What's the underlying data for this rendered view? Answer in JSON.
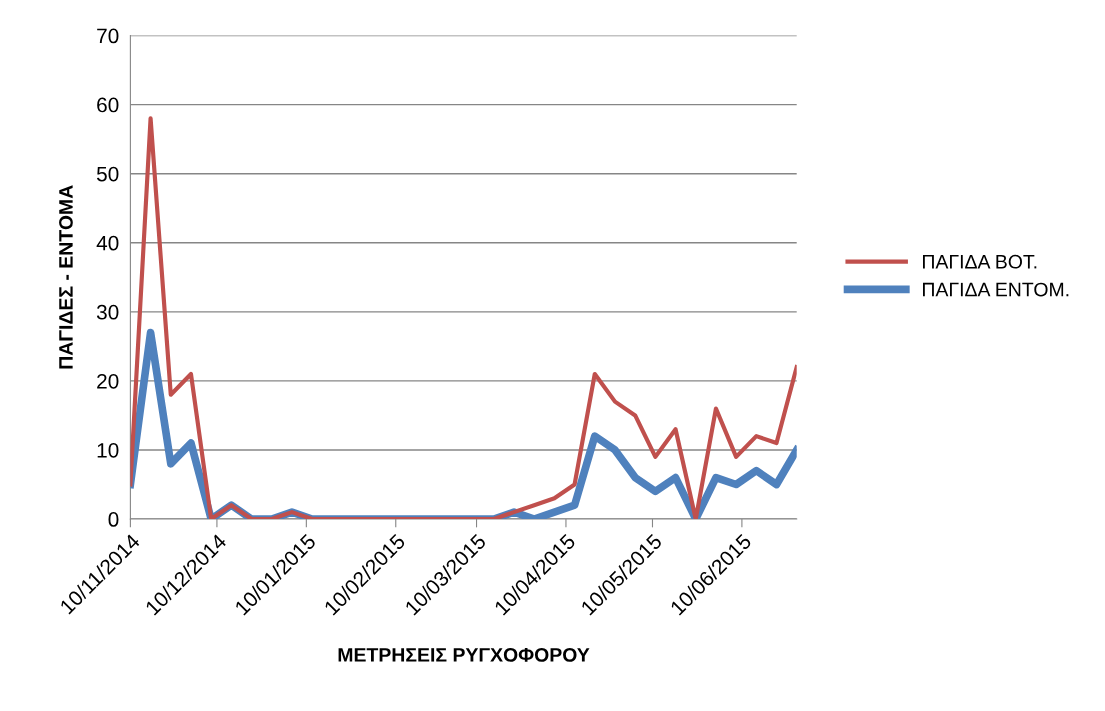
{
  "chart_data": {
    "type": "line",
    "xlabel": "ΜΕΤΡΗΣΕΙΣ ΡΥΓΧΟΦΟΡΟΥ",
    "ylabel": "ΠΑΓΙΔΕΣ - ΕΝΤΟΜΑ",
    "x": [
      "2014-11-10",
      "2014-11-17",
      "2014-11-24",
      "2014-12-01",
      "2014-12-08",
      "2014-12-15",
      "2014-12-22",
      "2014-12-29",
      "2015-01-05",
      "2015-01-12",
      "2015-01-19",
      "2015-01-26",
      "2015-02-02",
      "2015-02-09",
      "2015-02-16",
      "2015-02-23",
      "2015-03-02",
      "2015-03-09",
      "2015-03-16",
      "2015-03-23",
      "2015-03-30",
      "2015-04-06",
      "2015-04-13",
      "2015-04-20",
      "2015-04-27",
      "2015-05-04",
      "2015-05-11",
      "2015-05-18",
      "2015-05-25",
      "2015-06-01",
      "2015-06-08",
      "2015-06-15",
      "2015-06-22",
      "2015-06-29"
    ],
    "series": [
      {
        "name": "ΠΑΓΙΔΑ ΒΟΤ.",
        "color": "#c0504d",
        "values": [
          5,
          58,
          18,
          21,
          0,
          2,
          0,
          0,
          1,
          0,
          0,
          0,
          0,
          0,
          0,
          0,
          0,
          0,
          0,
          1,
          2,
          3,
          5,
          21,
          17,
          15,
          9,
          13,
          0,
          16,
          9,
          12,
          11,
          22
        ]
      },
      {
        "name": "ΠΑΓΙΔΑ ΕΝΤΟΜ.",
        "color": "#4f81bd",
        "values": [
          5,
          27,
          8,
          11,
          0,
          2,
          0,
          0,
          1,
          0,
          0,
          0,
          0,
          0,
          0,
          0,
          0,
          0,
          0,
          1,
          0,
          1,
          2,
          12,
          10,
          6,
          4,
          6,
          0,
          6,
          5,
          7,
          5,
          10
        ]
      }
    ],
    "xlim": [
      "2014-11-10",
      "2015-06-29"
    ],
    "xticks": [
      {
        "value": "2014-11-10",
        "label": "10/11/2014"
      },
      {
        "value": "2014-12-10",
        "label": "10/12/2014"
      },
      {
        "value": "2015-01-10",
        "label": "10/01/2015"
      },
      {
        "value": "2015-02-10",
        "label": "10/02/2015"
      },
      {
        "value": "2015-03-10",
        "label": "10/03/2015"
      },
      {
        "value": "2015-04-10",
        "label": "10/04/2015"
      },
      {
        "value": "2015-05-10",
        "label": "10/05/2015"
      },
      {
        "value": "2015-06-10",
        "label": "10/06/2015"
      }
    ],
    "ylim": [
      0,
      70
    ],
    "yticks": [
      0,
      10,
      20,
      30,
      40,
      50,
      60,
      70
    ],
    "grid": "y",
    "legend": "right",
    "marker": "none",
    "line_style": "solid"
  }
}
